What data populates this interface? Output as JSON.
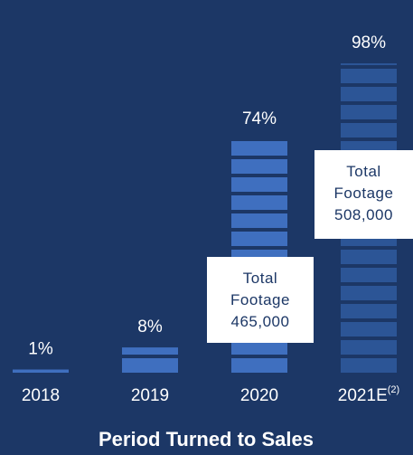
{
  "chart_data": {
    "type": "bar",
    "title": "Period Turned to Sales",
    "categories": [
      "2018",
      "2019",
      "2020",
      "2021E"
    ],
    "category_notes": [
      null,
      null,
      null,
      "(2)"
    ],
    "values": [
      1,
      8,
      74,
      98
    ],
    "value_labels": [
      "1%",
      "8%",
      "74%",
      "98%"
    ],
    "colors": [
      "#3f6fbf",
      "#3f6fbf",
      "#3f6fbf",
      "#2c5596"
    ],
    "annotations": [
      {
        "label": "Total Footage",
        "value": "465,000",
        "category": 2
      },
      {
        "label": "Total Footage",
        "value": "508,000",
        "category": 3
      }
    ]
  }
}
